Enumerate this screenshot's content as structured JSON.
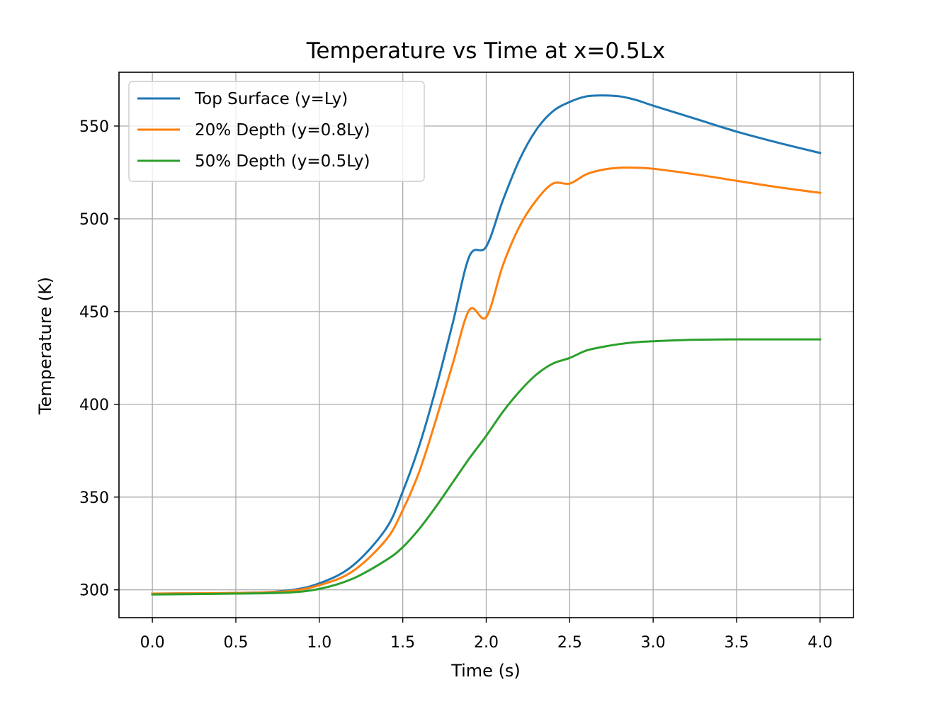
{
  "chart_data": {
    "type": "line",
    "title": "Temperature vs Time at x=0.5Lx",
    "xlabel": "Time (s)",
    "ylabel": "Temperature (K)",
    "xlim": [
      -0.2,
      4.2
    ],
    "ylim": [
      285,
      579
    ],
    "xticks": [
      0.0,
      0.5,
      1.0,
      1.5,
      2.0,
      2.5,
      3.0,
      3.5,
      4.0
    ],
    "xtick_labels": [
      "0.0",
      "0.5",
      "1.0",
      "1.5",
      "2.0",
      "2.5",
      "3.0",
      "3.5",
      "4.0"
    ],
    "yticks": [
      300,
      350,
      400,
      450,
      500,
      550
    ],
    "ytick_labels": [
      "300",
      "350",
      "400",
      "450",
      "500",
      "550"
    ],
    "grid": true,
    "legend_position": "top-left",
    "x": [
      0.0,
      0.5,
      0.8,
      1.0,
      1.2,
      1.4,
      1.5,
      1.6,
      1.7,
      1.8,
      1.9,
      2.0,
      2.1,
      2.2,
      2.3,
      2.4,
      2.5,
      2.6,
      2.7,
      2.8,
      2.9,
      3.0,
      3.25,
      3.5,
      3.75,
      4.0
    ],
    "series": [
      {
        "name": "Top Surface (y=Ly)",
        "color": "#1f77b4",
        "values": [
          298,
          298.3,
          299.5,
          303.5,
          313,
          333,
          353,
          378,
          409,
          444,
          480,
          485,
          510,
          532,
          548,
          558,
          563,
          566,
          566.5,
          566,
          564,
          561,
          554,
          547,
          541,
          535.5
        ]
      },
      {
        "name": "20% Depth (y=0.8Ly)",
        "color": "#ff7f0e",
        "values": [
          298,
          298.3,
          299.2,
          302.5,
          310,
          327,
          343,
          364,
          392,
          422,
          451,
          447,
          475,
          496,
          510,
          519,
          519,
          524,
          526.5,
          527.5,
          527.5,
          527,
          524,
          520.5,
          517,
          514
        ]
      },
      {
        "name": "50% Depth (y=0.5Ly)",
        "color": "#2ca02c",
        "values": [
          297.5,
          298,
          298.5,
          300.5,
          306,
          316,
          323,
          333,
          345,
          358,
          371,
          383,
          396,
          407,
          416,
          422,
          425,
          429,
          431,
          432.5,
          433.5,
          434,
          434.8,
          435,
          435,
          435
        ]
      }
    ]
  }
}
